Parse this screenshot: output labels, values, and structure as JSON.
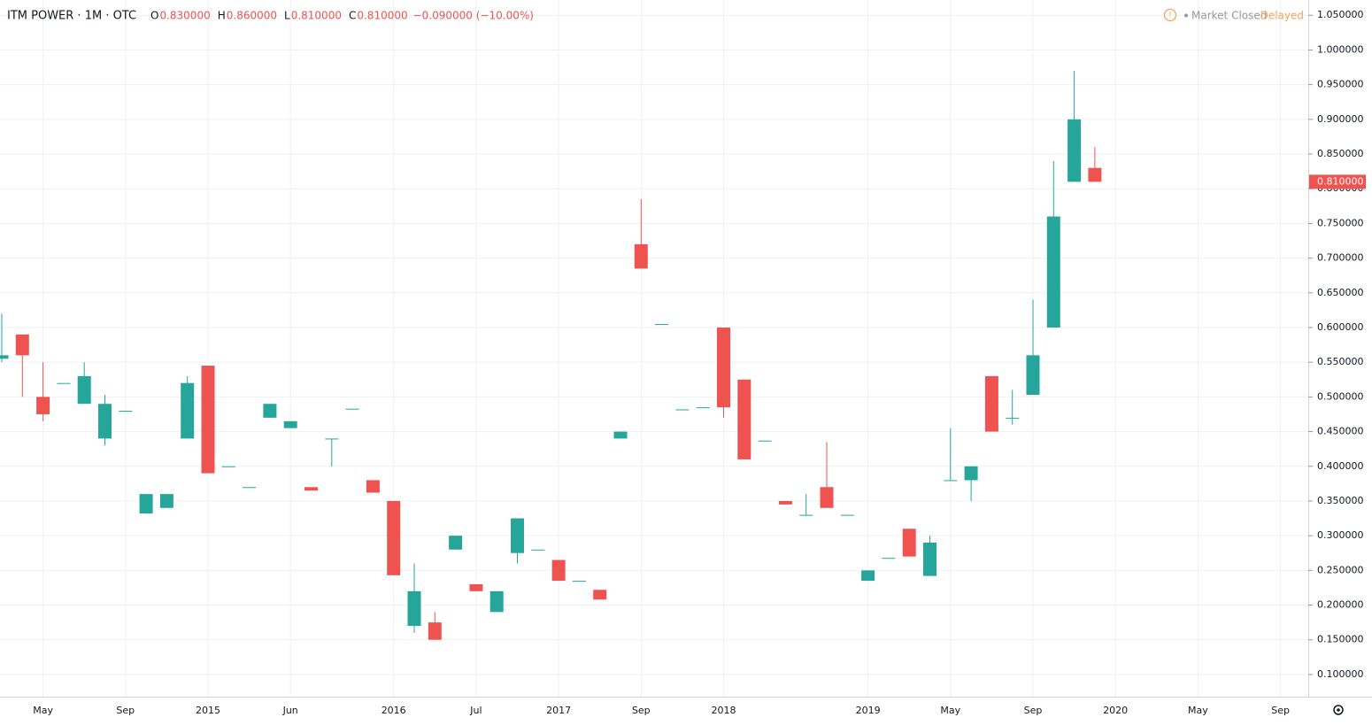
{
  "chart_data": {
    "type": "candlestick",
    "header": {
      "symbol": "ITM POWER · 1M · OTC",
      "ohlc": [
        {
          "label": "O",
          "value": "0.830000"
        },
        {
          "label": "H",
          "value": "0.860000"
        },
        {
          "label": "L",
          "value": "0.810000"
        },
        {
          "label": "C",
          "value": "0.810000"
        }
      ],
      "change": "−0.090000 (−10.00%)"
    },
    "status": {
      "state": "Market Closed",
      "feed": "Delayed"
    },
    "categories": [
      null,
      null,
      "May",
      null,
      null,
      null,
      "Sep",
      null,
      null,
      null,
      "2015",
      null,
      null,
      null,
      "Jun",
      null,
      null,
      null,
      null,
      "2016",
      null,
      null,
      null,
      "Jul",
      null,
      null,
      null,
      "2017",
      null,
      null,
      null,
      "Sep",
      null,
      null,
      null,
      "2018",
      null,
      null,
      null,
      null,
      null,
      null,
      "2019",
      null,
      null,
      null,
      "May",
      null,
      null,
      null,
      "Sep",
      null,
      null,
      null,
      "2020",
      null,
      null,
      null,
      "May",
      null,
      null,
      null,
      "Sep",
      null
    ],
    "series": [
      {
        "name": "ITM POWER",
        "up_color": "#26a69a",
        "down_color": "#ef5350",
        "open": [
          0.555,
          0.59,
          0.5,
          0.52,
          0.49,
          0.44,
          0.48,
          0.332,
          0.34,
          0.44,
          0.545,
          0.4,
          0.37,
          0.47,
          0.455,
          0.37,
          0.44,
          0.483,
          0.38,
          0.35,
          0.17,
          0.175,
          0.28,
          0.23,
          0.19,
          0.275,
          0.28,
          0.265,
          0.235,
          0.222,
          0.44,
          0.72,
          0.605,
          0.482,
          0.485,
          0.6,
          0.525,
          0.437,
          0.35,
          0.33,
          0.37,
          0.33,
          0.235,
          0.268,
          0.31,
          0.242,
          0.38,
          0.38,
          0.53,
          0.47,
          0.503,
          0.6,
          0.81,
          0.83,
          null,
          null,
          null,
          null,
          null,
          null,
          null,
          null,
          null,
          null
        ],
        "high": [
          0.62,
          0.59,
          0.55,
          0.52,
          0.55,
          0.503,
          0.48,
          0.36,
          0.36,
          0.53,
          0.545,
          0.4,
          0.37,
          0.49,
          0.465,
          0.37,
          0.44,
          0.483,
          0.38,
          0.35,
          0.26,
          0.19,
          0.3,
          0.23,
          0.22,
          0.325,
          0.28,
          0.265,
          0.235,
          0.222,
          0.45,
          0.785,
          0.605,
          0.482,
          0.485,
          0.6,
          0.525,
          0.437,
          0.35,
          0.36,
          0.435,
          0.33,
          0.25,
          0.268,
          0.31,
          0.3,
          0.455,
          0.4,
          0.53,
          0.51,
          0.64,
          0.84,
          0.97,
          0.86,
          null,
          null,
          null,
          null,
          null,
          null,
          null,
          null,
          null,
          null
        ],
        "low": [
          0.55,
          0.5,
          0.465,
          0.52,
          0.49,
          0.43,
          0.48,
          0.332,
          0.34,
          0.44,
          0.39,
          0.4,
          0.37,
          0.47,
          0.455,
          0.365,
          0.4,
          0.483,
          0.362,
          0.243,
          0.16,
          0.15,
          0.28,
          0.22,
          0.19,
          0.26,
          0.28,
          0.235,
          0.235,
          0.208,
          0.44,
          0.685,
          0.605,
          0.482,
          0.485,
          0.47,
          0.41,
          0.437,
          0.345,
          0.33,
          0.34,
          0.33,
          0.235,
          0.268,
          0.27,
          0.242,
          0.38,
          0.35,
          0.45,
          0.46,
          0.503,
          0.6,
          0.81,
          0.81,
          null,
          null,
          null,
          null,
          null,
          null,
          null,
          null,
          null,
          null
        ],
        "close": [
          0.56,
          0.56,
          0.475,
          0.52,
          0.53,
          0.49,
          0.48,
          0.36,
          0.36,
          0.52,
          0.39,
          0.4,
          0.37,
          0.49,
          0.465,
          0.365,
          0.44,
          0.483,
          0.362,
          0.243,
          0.22,
          0.15,
          0.3,
          0.22,
          0.22,
          0.325,
          0.28,
          0.235,
          0.235,
          0.208,
          0.45,
          0.685,
          0.605,
          0.482,
          0.485,
          0.485,
          0.41,
          0.437,
          0.345,
          0.33,
          0.34,
          0.33,
          0.25,
          0.268,
          0.27,
          0.29,
          0.38,
          0.4,
          0.45,
          0.47,
          0.56,
          0.76,
          0.9,
          0.81,
          null,
          null,
          null,
          null,
          null,
          null,
          null,
          null,
          null,
          null
        ]
      }
    ],
    "last_price": {
      "value": 0.81,
      "label": "0.810000"
    },
    "ylim": [
      0.068,
      1.072
    ],
    "yticks": [
      {
        "value": 0.1,
        "label": "0.100000"
      },
      {
        "value": 0.15,
        "label": "0.150000"
      },
      {
        "value": 0.2,
        "label": "0.200000"
      },
      {
        "value": 0.25,
        "label": "0.250000"
      },
      {
        "value": 0.3,
        "label": "0.300000"
      },
      {
        "value": 0.35,
        "label": "0.350000"
      },
      {
        "value": 0.4,
        "label": "0.400000"
      },
      {
        "value": 0.45,
        "label": "0.450000"
      },
      {
        "value": 0.5,
        "label": "0.500000"
      },
      {
        "value": 0.55,
        "label": "0.550000"
      },
      {
        "value": 0.6,
        "label": "0.600000"
      },
      {
        "value": 0.65,
        "label": "0.650000"
      },
      {
        "value": 0.7,
        "label": "0.700000"
      },
      {
        "value": 0.75,
        "label": "0.750000"
      },
      {
        "value": 0.8,
        "label": "0.800000"
      },
      {
        "value": 0.85,
        "label": "0.850000"
      },
      {
        "value": 0.9,
        "label": "0.900000"
      },
      {
        "value": 0.95,
        "label": "0.950000"
      },
      {
        "value": 1.0,
        "label": "1.000000"
      },
      {
        "value": 1.05,
        "label": "1.050000"
      }
    ],
    "grid": true
  }
}
